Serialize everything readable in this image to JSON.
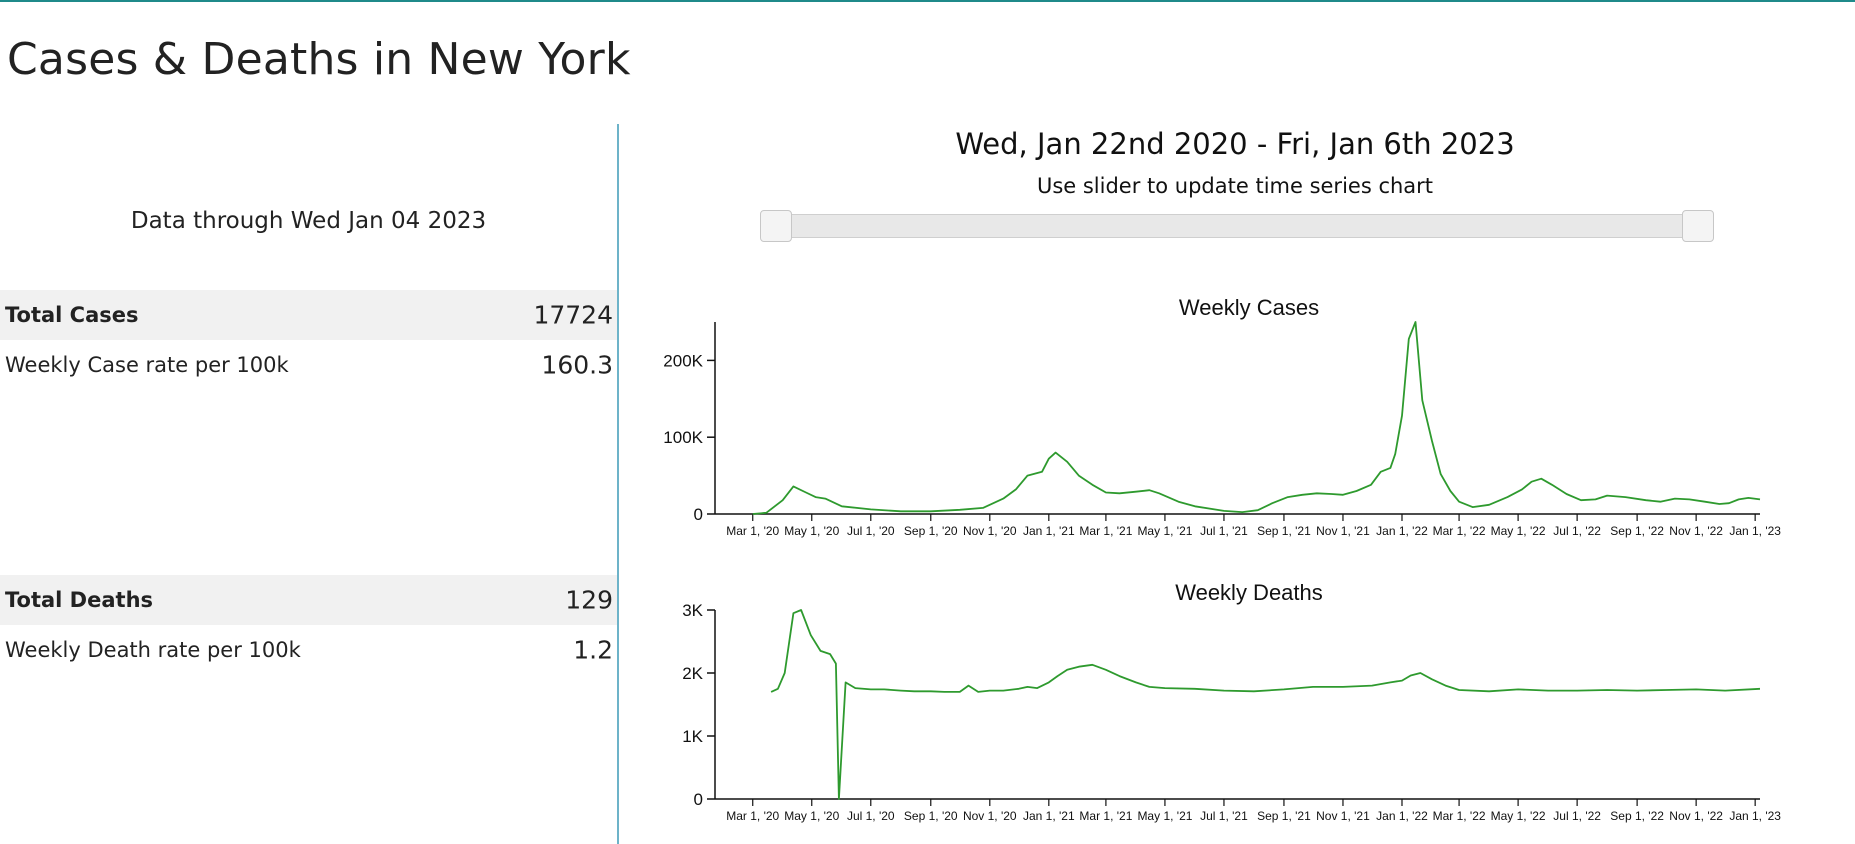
{
  "page_title": "Cases & Deaths in New York",
  "summary": {
    "data_through": "Data through Wed Jan 04 2023",
    "cases": {
      "total_label": "Total Cases",
      "total_value": "17724",
      "rate_label": "Weekly Case rate per 100k",
      "rate_value": "160.3"
    },
    "deaths": {
      "total_label": "Total Deaths",
      "total_value": "129",
      "rate_label": "Weekly Death rate per 100k",
      "rate_value": "1.2"
    }
  },
  "range_selector": {
    "date_range": "Wed, Jan 22nd 2020 - Fri, Jan 6th 2023",
    "caption": "Use slider to update time series chart",
    "start_fraction": 0,
    "end_fraction": 1
  },
  "colors": {
    "line": "#2e9a2e",
    "divider": "#6db3c9",
    "accent": "#1f8a8a"
  },
  "chart_data": [
    {
      "type": "line",
      "title": "Weekly Cases",
      "xlabel": "",
      "ylabel": "",
      "x_domain": [
        "2020-01-22",
        "2023-01-06"
      ],
      "ylim": [
        0,
        250000
      ],
      "y_ticks": [
        0,
        100000,
        200000
      ],
      "y_tick_labels": [
        "0",
        "100K",
        "200K"
      ],
      "x_ticks": [
        "2020-03-01",
        "2020-05-01",
        "2020-07-01",
        "2020-09-01",
        "2020-11-01",
        "2021-01-01",
        "2021-03-01",
        "2021-05-01",
        "2021-07-01",
        "2021-09-01",
        "2021-11-01",
        "2022-01-01",
        "2022-03-01",
        "2022-05-01",
        "2022-07-01",
        "2022-09-01",
        "2022-11-01",
        "2023-01-01"
      ],
      "x_tick_labels": [
        "Mar 1, '20",
        "May 1, '20",
        "Jul 1, '20",
        "Sep 1, '20",
        "Nov 1, '20",
        "Jan 1, '21",
        "Mar 1, '21",
        "May 1, '21",
        "Jul 1, '21",
        "Sep 1, '21",
        "Nov 1, '21",
        "Jan 1, '22",
        "Mar 1, '22",
        "May 1, '22",
        "Jul 1, '22",
        "Sep 1, '22",
        "Nov 1, '22",
        "Jan 1, '23"
      ],
      "series": [
        {
          "x": [
            "2020-03-01",
            "2020-03-15",
            "2020-04-01",
            "2020-04-12",
            "2020-04-25",
            "2020-05-05",
            "2020-05-15",
            "2020-06-01",
            "2020-07-01",
            "2020-08-01",
            "2020-09-01",
            "2020-10-01",
            "2020-10-25",
            "2020-11-15",
            "2020-11-28",
            "2020-12-10",
            "2020-12-25",
            "2021-01-01",
            "2021-01-08",
            "2021-01-20",
            "2021-02-01",
            "2021-02-15",
            "2021-03-01",
            "2021-03-15",
            "2021-04-01",
            "2021-04-15",
            "2021-04-25",
            "2021-05-15",
            "2021-06-01",
            "2021-07-01",
            "2021-07-20",
            "2021-08-05",
            "2021-08-20",
            "2021-09-05",
            "2021-09-20",
            "2021-10-05",
            "2021-10-20",
            "2021-11-01",
            "2021-11-15",
            "2021-11-30",
            "2021-12-10",
            "2021-12-20",
            "2021-12-25",
            "2022-01-01",
            "2022-01-08",
            "2022-01-15",
            "2022-01-22",
            "2022-02-01",
            "2022-02-10",
            "2022-02-20",
            "2022-03-01",
            "2022-03-15",
            "2022-04-01",
            "2022-04-20",
            "2022-05-05",
            "2022-05-15",
            "2022-05-25",
            "2022-06-05",
            "2022-06-20",
            "2022-07-05",
            "2022-07-20",
            "2022-08-01",
            "2022-08-20",
            "2022-09-10",
            "2022-09-25",
            "2022-10-10",
            "2022-10-25",
            "2022-11-10",
            "2022-11-25",
            "2022-12-05",
            "2022-12-15",
            "2022-12-25",
            "2023-01-06"
          ],
          "y": [
            0,
            1500,
            18000,
            36000,
            28000,
            22000,
            20000,
            10000,
            6000,
            3500,
            3500,
            5500,
            8000,
            20000,
            32000,
            50000,
            55000,
            72000,
            80000,
            68000,
            50000,
            38000,
            28000,
            27000,
            29000,
            31000,
            27000,
            16000,
            10000,
            4000,
            2500,
            5000,
            14000,
            22000,
            25000,
            27000,
            26000,
            25000,
            30000,
            38000,
            55000,
            60000,
            78000,
            128000,
            228000,
            250000,
            148000,
            95000,
            52000,
            30000,
            16000,
            9000,
            12000,
            22000,
            32000,
            42000,
            46000,
            38000,
            26000,
            18000,
            19000,
            24000,
            22000,
            18000,
            16000,
            20000,
            19000,
            16000,
            13000,
            14000,
            19000,
            21000,
            19000
          ]
        }
      ]
    },
    {
      "type": "line",
      "title": "Weekly Deaths",
      "xlabel": "",
      "ylabel": "",
      "x_domain": [
        "2020-01-22",
        "2023-01-06"
      ],
      "ylim": [
        0,
        3000
      ],
      "y_ticks": [
        0,
        1000,
        2000,
        3000
      ],
      "y_tick_labels": [
        "0",
        "1K",
        "2K",
        "3K"
      ],
      "x_ticks": [
        "2020-03-01",
        "2020-05-01",
        "2020-07-01",
        "2020-09-01",
        "2020-11-01",
        "2021-01-01",
        "2021-03-01",
        "2021-05-01",
        "2021-07-01",
        "2021-09-01",
        "2021-11-01",
        "2022-01-01",
        "2022-03-01",
        "2022-05-01",
        "2022-07-01",
        "2022-09-01",
        "2022-11-01",
        "2023-01-01"
      ],
      "x_tick_labels": [
        "Mar 1, '20",
        "May 1, '20",
        "Jul 1, '20",
        "Sep 1, '20",
        "Nov 1, '20",
        "Jan 1, '21",
        "Mar 1, '21",
        "May 1, '21",
        "Jul 1, '21",
        "Sep 1, '21",
        "Nov 1, '21",
        "Jan 1, '22",
        "Mar 1, '22",
        "May 1, '22",
        "Jul 1, '22",
        "Sep 1, '22",
        "Nov 1, '22",
        "Jan 1, '23"
      ],
      "series": [
        {
          "x": [
            "2020-03-20",
            "2020-03-27",
            "2020-04-03",
            "2020-04-12",
            "2020-04-20",
            "2020-04-30",
            "2020-05-10",
            "2020-05-20",
            "2020-05-26",
            "2020-05-29",
            "2020-06-05",
            "2020-06-15",
            "2020-07-01",
            "2020-07-15",
            "2020-08-01",
            "2020-08-15",
            "2020-09-01",
            "2020-09-15",
            "2020-10-01",
            "2020-10-10",
            "2020-10-20",
            "2020-11-01",
            "2020-11-15",
            "2020-12-01",
            "2020-12-10",
            "2020-12-20",
            "2021-01-01",
            "2021-01-10",
            "2021-01-20",
            "2021-02-01",
            "2021-02-15",
            "2021-03-01",
            "2021-03-15",
            "2021-04-01",
            "2021-04-15",
            "2021-05-01",
            "2021-06-01",
            "2021-07-01",
            "2021-08-01",
            "2021-09-01",
            "2021-10-01",
            "2021-11-01",
            "2021-12-01",
            "2021-12-20",
            "2022-01-01",
            "2022-01-10",
            "2022-01-20",
            "2022-02-01",
            "2022-02-15",
            "2022-03-01",
            "2022-04-01",
            "2022-05-01",
            "2022-06-01",
            "2022-07-01",
            "2022-08-01",
            "2022-09-01",
            "2022-10-01",
            "2022-11-01",
            "2022-12-01",
            "2023-01-06"
          ],
          "y": [
            1700,
            1750,
            2000,
            2950,
            3000,
            2600,
            2350,
            2300,
            2150,
            0,
            1850,
            1760,
            1740,
            1740,
            1720,
            1710,
            1710,
            1700,
            1700,
            1800,
            1700,
            1720,
            1720,
            1750,
            1780,
            1760,
            1850,
            1950,
            2050,
            2100,
            2130,
            2050,
            1950,
            1850,
            1780,
            1760,
            1750,
            1720,
            1710,
            1740,
            1780,
            1780,
            1800,
            1850,
            1880,
            1960,
            2000,
            1900,
            1800,
            1730,
            1710,
            1740,
            1720,
            1720,
            1730,
            1720,
            1730,
            1740,
            1720,
            1750
          ]
        }
      ]
    }
  ]
}
